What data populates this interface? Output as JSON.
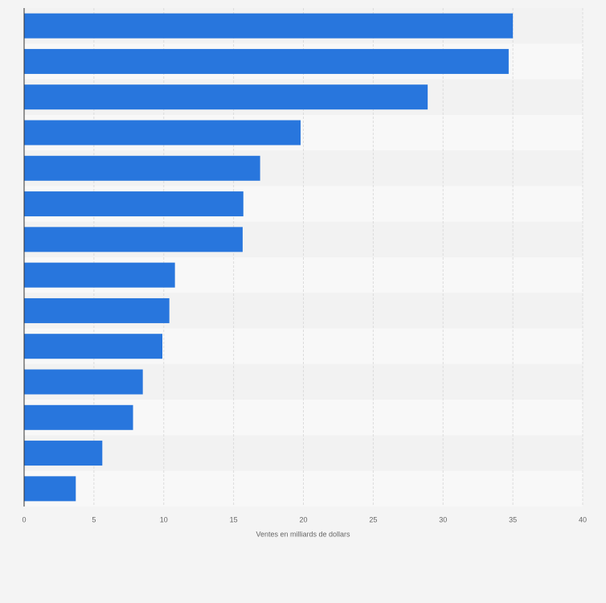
{
  "chart_data": {
    "type": "barh",
    "categories": [
      null,
      null,
      null,
      null,
      null,
      null,
      null,
      null,
      null,
      null,
      null,
      null,
      null,
      null
    ],
    "values": [
      35.0,
      34.7,
      28.9,
      19.8,
      16.9,
      15.7,
      15.65,
      10.8,
      10.4,
      9.9,
      8.5,
      7.8,
      5.6,
      3.7
    ],
    "color": "#2876dd",
    "xlabel": "Ventes en milliards de dollars",
    "xlim": [
      0,
      40
    ],
    "xticks": [
      0,
      5,
      10,
      15,
      20,
      25,
      30,
      35,
      40
    ],
    "grid": true
  }
}
